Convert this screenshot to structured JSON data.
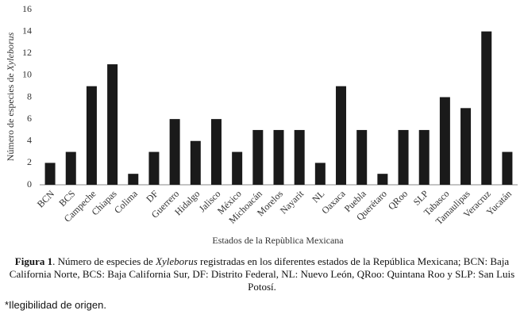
{
  "chart_data": {
    "type": "bar",
    "y_label": {
      "text": "Número de especies de ",
      "italic": "Xyleborus"
    },
    "x_label": "Estados de la Repùblica Mexicana",
    "categories": [
      "BCN",
      "BCS",
      "Campeche",
      "Chiapas",
      "Colima",
      "DF",
      "Guerrero",
      "Hidalgo",
      "Jalisco",
      "México",
      "Michoacán",
      "Morelos",
      "Nayarit",
      "NL",
      "Oaxaca",
      "Puebla",
      "Querétaro",
      "QRoo",
      "SLP",
      "Tabasco",
      "Tamaulipas",
      "Veracruz",
      "Yucatán"
    ],
    "values": [
      2,
      3,
      9,
      11,
      1,
      3,
      6,
      4,
      6,
      3,
      5,
      5,
      5,
      2,
      9,
      5,
      1,
      5,
      5,
      8,
      7,
      14,
      3
    ],
    "color": "#1a1a1a",
    "ylim": [
      0,
      16
    ],
    "yticks": [
      0,
      2,
      4,
      6,
      8,
      10,
      12,
      14,
      16
    ]
  },
  "caption": {
    "label": "Figura 1",
    "text1": ". Número de especies de ",
    "italic": "Xyleborus",
    "text2": " registradas en los diferentes estados de la República Mexicana; BCN: Baja California Norte, BCS: Baja California Sur, DF: Distrito Federal, NL: Nuevo León, QRoo: Quintana Roo y SLP: San Luis Potosí."
  },
  "note": "*Ilegibilidad de origen."
}
